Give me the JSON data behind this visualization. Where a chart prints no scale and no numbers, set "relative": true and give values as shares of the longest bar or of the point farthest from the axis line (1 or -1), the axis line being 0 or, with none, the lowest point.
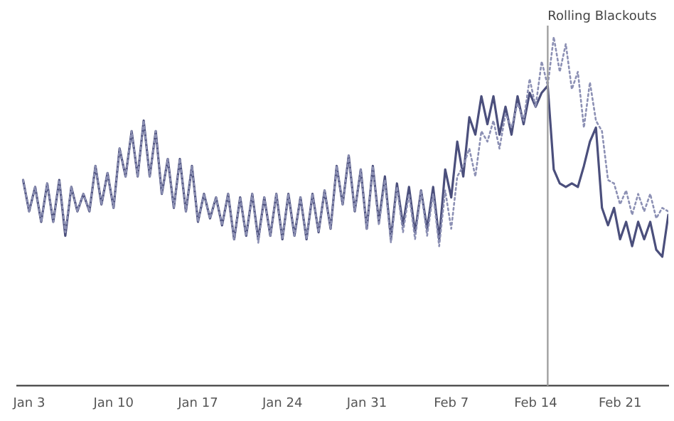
{
  "chart_data": {
    "type": "line",
    "relative": true,
    "tick_labels": "x",
    "legend": false,
    "grid": false,
    "marker": "none",
    "x": [
      "--01-02T12:00",
      "--01-03",
      "--01-03T12:00",
      "--01-04",
      "--01-04T12:00",
      "--01-05",
      "--01-05T12:00",
      "--01-06",
      "--01-06T12:00",
      "--01-07",
      "--01-07T12:00",
      "--01-08",
      "--01-08T12:00",
      "--01-09",
      "--01-09T12:00",
      "--01-10",
      "--01-10T12:00",
      "--01-11",
      "--01-11T12:00",
      "--01-12",
      "--01-12T12:00",
      "--01-13",
      "--01-13T12:00",
      "--01-14",
      "--01-14T12:00",
      "--01-15",
      "--01-15T12:00",
      "--01-16",
      "--01-16T12:00",
      "--01-17",
      "--01-17T12:00",
      "--01-18",
      "--01-18T12:00",
      "--01-19",
      "--01-19T12:00",
      "--01-20",
      "--01-20T12:00",
      "--01-21",
      "--01-21T12:00",
      "--01-22",
      "--01-22T12:00",
      "--01-23",
      "--01-23T12:00",
      "--01-24",
      "--01-24T12:00",
      "--01-25",
      "--01-25T12:00",
      "--01-26",
      "--01-26T12:00",
      "--01-27",
      "--01-27T12:00",
      "--01-28",
      "--01-28T12:00",
      "--01-29",
      "--01-29T12:00",
      "--01-30",
      "--01-30T12:00",
      "--01-31",
      "--01-31T12:00",
      "--02-01",
      "--02-01T12:00",
      "--02-02",
      "--02-02T12:00",
      "--02-03",
      "--02-03T12:00",
      "--02-04",
      "--02-04T12:00",
      "--02-05",
      "--02-05T12:00",
      "--02-06",
      "--02-06T12:00",
      "--02-07",
      "--02-07T12:00",
      "--02-08",
      "--02-08T12:00",
      "--02-09",
      "--02-09T12:00",
      "--02-10",
      "--02-10T12:00",
      "--02-11",
      "--02-11T12:00",
      "--02-12",
      "--02-12T12:00",
      "--02-13",
      "--02-13T12:00",
      "--02-14",
      "--02-14T12:00",
      "--02-15",
      "--02-15T12:00",
      "--02-16",
      "--02-16T12:00",
      "--02-17",
      "--02-17T12:00",
      "--02-18",
      "--02-18T12:00",
      "--02-19",
      "--02-19T12:00",
      "--02-20",
      "--02-20T12:00",
      "--02-21",
      "--02-21T12:00",
      "--02-22",
      "--02-22T12:00",
      "--02-23",
      "--02-23T12:00",
      "--02-24",
      "--02-24T12:00",
      "--02-25"
    ],
    "xlim": [
      "--01-02",
      "--02-25"
    ],
    "xticks": [
      {
        "value": "--01-03",
        "label": "Jan 3"
      },
      {
        "value": "--01-10",
        "label": "Jan 10"
      },
      {
        "value": "--01-17",
        "label": "Jan 17"
      },
      {
        "value": "--01-24",
        "label": "Jan 24"
      },
      {
        "value": "--01-31",
        "label": "Jan 31"
      },
      {
        "value": "--02-07",
        "label": "Feb 7"
      },
      {
        "value": "--02-14",
        "label": "Feb 14"
      },
      {
        "value": "--02-21",
        "label": "Feb 21"
      }
    ],
    "series": [
      {
        "color": "#8c90b4",
        "line_style": "dotted",
        "values": [
          0.59,
          0.5,
          0.57,
          0.47,
          0.58,
          0.47,
          0.59,
          0.44,
          0.57,
          0.5,
          0.55,
          0.5,
          0.63,
          0.52,
          0.61,
          0.51,
          0.68,
          0.6,
          0.73,
          0.6,
          0.76,
          0.6,
          0.73,
          0.55,
          0.65,
          0.51,
          0.65,
          0.5,
          0.63,
          0.47,
          0.55,
          0.48,
          0.54,
          0.46,
          0.55,
          0.42,
          0.54,
          0.43,
          0.55,
          0.41,
          0.54,
          0.43,
          0.55,
          0.42,
          0.55,
          0.43,
          0.54,
          0.42,
          0.55,
          0.44,
          0.56,
          0.45,
          0.63,
          0.52,
          0.66,
          0.5,
          0.62,
          0.45,
          0.63,
          0.46,
          0.59,
          0.41,
          0.57,
          0.44,
          0.55,
          0.42,
          0.56,
          0.43,
          0.55,
          0.4,
          0.56,
          0.45,
          0.6,
          0.63,
          0.68,
          0.6,
          0.73,
          0.7,
          0.76,
          0.68,
          0.78,
          0.74,
          0.81,
          0.76,
          0.88,
          0.8,
          0.93,
          0.86,
          1.0,
          0.9,
          0.98,
          0.85,
          0.9,
          0.74,
          0.87,
          0.76,
          0.73,
          0.59,
          0.58,
          0.52,
          0.56,
          0.49,
          0.55,
          0.5,
          0.55,
          0.48,
          0.51,
          0.5
        ]
      },
      {
        "color": "#4b4f7c",
        "line_style": "solid",
        "values": [
          0.59,
          0.5,
          0.57,
          0.47,
          0.58,
          0.47,
          0.59,
          0.43,
          0.57,
          0.5,
          0.55,
          0.5,
          0.63,
          0.52,
          0.61,
          0.51,
          0.68,
          0.6,
          0.73,
          0.6,
          0.76,
          0.6,
          0.73,
          0.55,
          0.65,
          0.51,
          0.65,
          0.5,
          0.63,
          0.47,
          0.55,
          0.48,
          0.54,
          0.46,
          0.55,
          0.42,
          0.54,
          0.43,
          0.55,
          0.42,
          0.54,
          0.43,
          0.55,
          0.42,
          0.55,
          0.43,
          0.54,
          0.42,
          0.55,
          0.44,
          0.56,
          0.45,
          0.63,
          0.52,
          0.66,
          0.5,
          0.62,
          0.45,
          0.63,
          0.47,
          0.6,
          0.42,
          0.58,
          0.46,
          0.57,
          0.44,
          0.56,
          0.45,
          0.57,
          0.42,
          0.62,
          0.54,
          0.7,
          0.6,
          0.77,
          0.72,
          0.83,
          0.75,
          0.83,
          0.72,
          0.8,
          0.72,
          0.83,
          0.75,
          0.84,
          0.8,
          0.84,
          0.86,
          0.62,
          0.58,
          0.57,
          0.58,
          0.57,
          0.63,
          0.7,
          0.74,
          0.51,
          0.46,
          0.51,
          0.42,
          0.47,
          0.4,
          0.47,
          0.42,
          0.47,
          0.39,
          0.37,
          0.49
        ]
      }
    ],
    "ref_lines": [
      {
        "axis": "x",
        "value": "--02-15",
        "label": "Rolling Blackouts",
        "color": "#a0a0a0"
      }
    ]
  }
}
